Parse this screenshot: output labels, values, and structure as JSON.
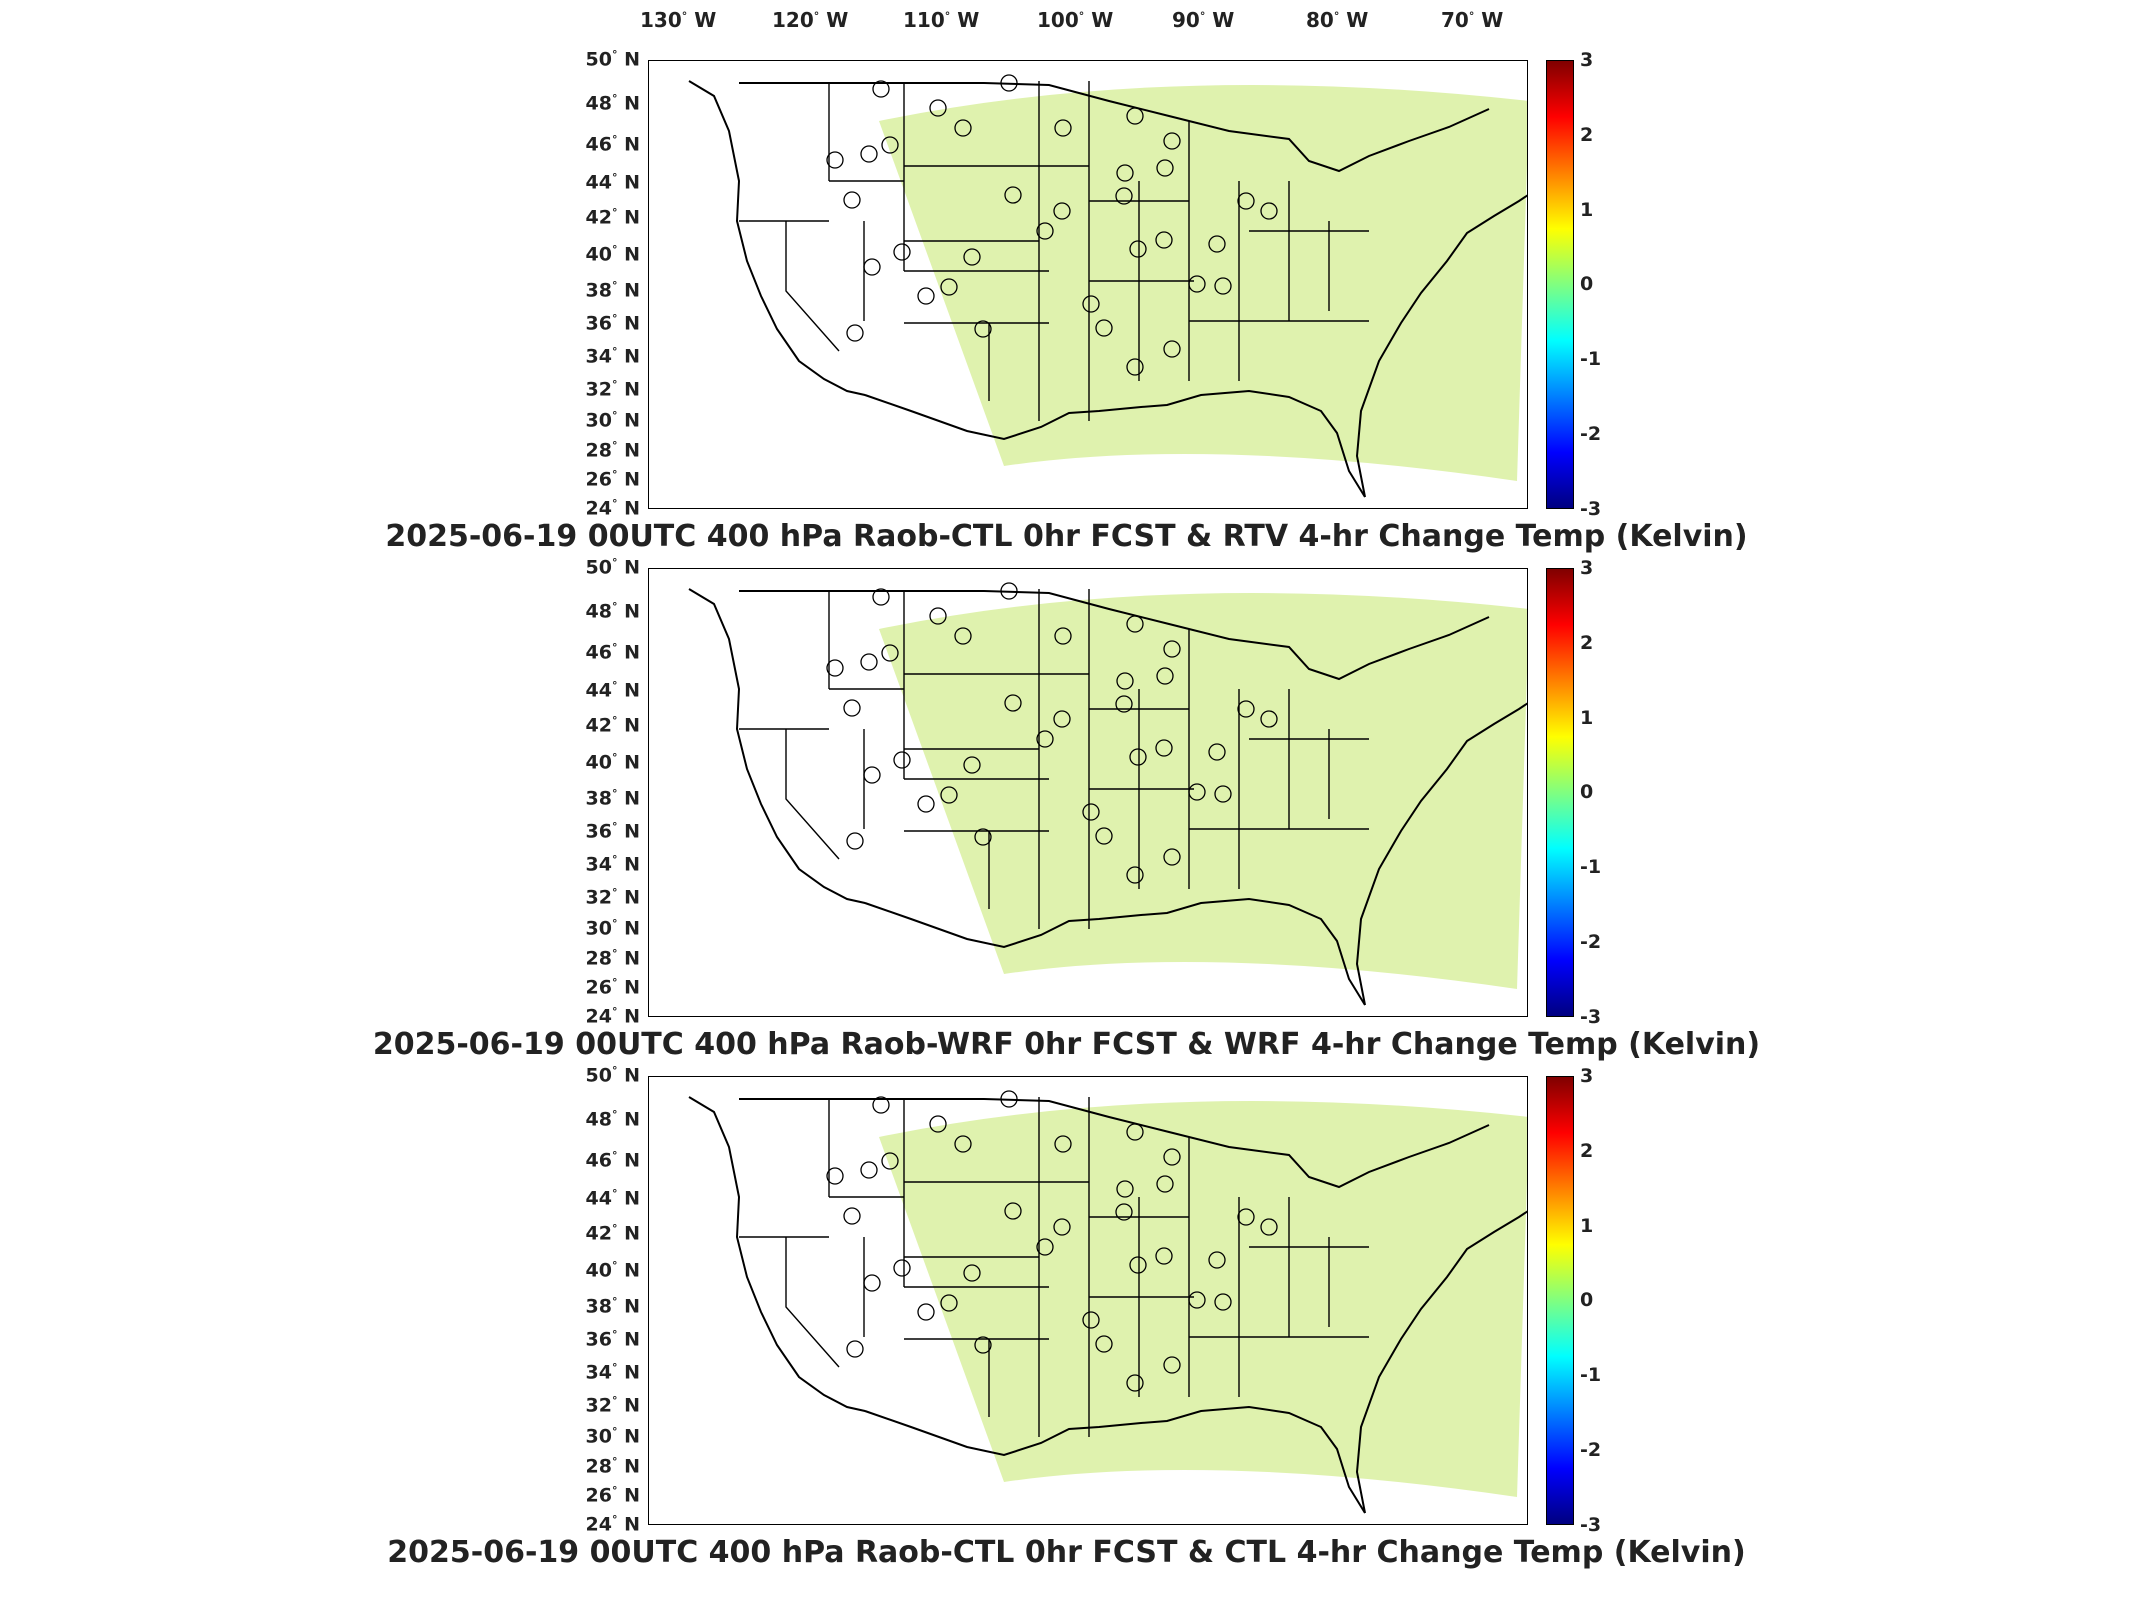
{
  "longitude_labels": [
    {
      "deg": "130",
      "dir": "W"
    },
    {
      "deg": "120",
      "dir": "W"
    },
    {
      "deg": "110",
      "dir": "W"
    },
    {
      "deg": "100",
      "dir": "W"
    },
    {
      "deg": "90",
      "dir": "W"
    },
    {
      "deg": "80",
      "dir": "W"
    },
    {
      "deg": "70",
      "dir": "W"
    }
  ],
  "latitude_labels": [
    {
      "deg": "50",
      "dir": "N"
    },
    {
      "deg": "48",
      "dir": "N"
    },
    {
      "deg": "46",
      "dir": "N"
    },
    {
      "deg": "44",
      "dir": "N"
    },
    {
      "deg": "42",
      "dir": "N"
    },
    {
      "deg": "40",
      "dir": "N"
    },
    {
      "deg": "38",
      "dir": "N"
    },
    {
      "deg": "36",
      "dir": "N"
    },
    {
      "deg": "34",
      "dir": "N"
    },
    {
      "deg": "32",
      "dir": "N"
    },
    {
      "deg": "30",
      "dir": "N"
    },
    {
      "deg": "28",
      "dir": "N"
    },
    {
      "deg": "26",
      "dir": "N"
    },
    {
      "deg": "24",
      "dir": "N"
    }
  ],
  "colorbar": {
    "ticks": [
      "3",
      "2",
      "1",
      "0",
      "-1",
      "-2",
      "-3"
    ],
    "range": [
      -3,
      3
    ],
    "colormap": [
      "#800000",
      "#ff0000",
      "#ffff00",
      "#80ff80",
      "#00ffff",
      "#0000ff",
      "#000080"
    ]
  },
  "panels": [
    {
      "title": "2025-06-19 00UTC 400 hPa Raob-CTL 0hr FCST & RTV 4-hr Change Temp (Kelvin)"
    },
    {
      "title": "2025-06-19 00UTC 400 hPa Raob-WRF 0hr FCST & WRF 4-hr Change Temp (Kelvin)"
    },
    {
      "title": "2025-06-19 00UTC 400 hPa Raob-CTL 0hr FCST & CTL 4-hr Change Temp (Kelvin)"
    }
  ]
}
